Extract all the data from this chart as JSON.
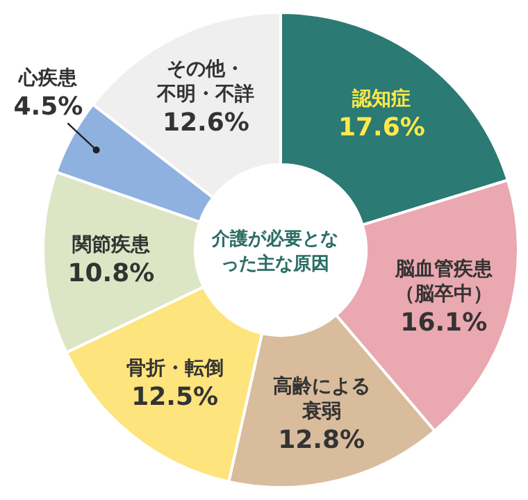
{
  "chart_data": {
    "type": "donut",
    "title": "介護が必要となった主な原因",
    "categories": [
      "認知症",
      "脳血管疾患（脳卒中）",
      "高齢による衰弱",
      "骨折・転倒",
      "関節疾患",
      "心疾患",
      "その他・不明・不詳"
    ],
    "values": [
      17.6,
      16.1,
      12.8,
      12.5,
      10.8,
      4.5,
      12.6
    ],
    "value_labels": [
      "17.6%",
      "16.1%",
      "12.8%",
      "12.5%",
      "10.8%",
      "4.5%",
      "12.6%"
    ],
    "colors": [
      "#2b7a73",
      "#eaa8b0",
      "#d9bc9c",
      "#fde47c",
      "#dde6c4",
      "#8fb1e0",
      "#efefef"
    ],
    "legend": false
  }
}
